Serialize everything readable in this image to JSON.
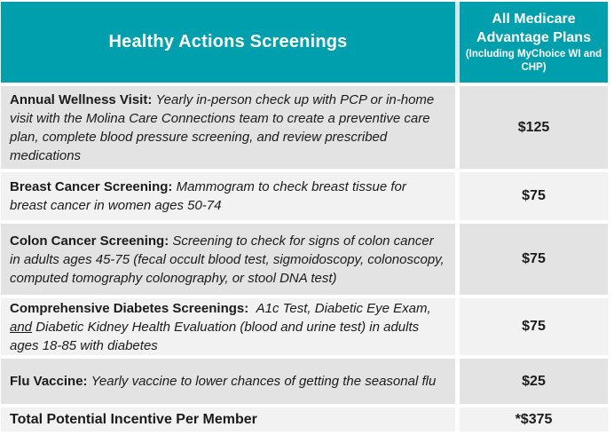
{
  "header": {
    "left_title": "Healthy Actions Screenings",
    "right_title": "All Medicare Advantage Plans",
    "right_subtitle": "(Including MyChoice WI and CHP)"
  },
  "rows": [
    {
      "label": "Annual Wellness Visit:",
      "description": "Yearly in-person check up with PCP or in-home visit with the Molina Care Connections team to create a preventive care plan, complete blood pressure screening, and review prescribed medications",
      "value": "$125"
    },
    {
      "label": "Breast Cancer Screening:",
      "description": "Mammogram to check breast tissue for breast cancer in women ages 50-74",
      "value": "$75"
    },
    {
      "label": "Colon Cancer Screening:",
      "description": "Screening to check for signs of colon cancer in adults ages 45-75 (fecal occult blood test, sigmoidoscopy, colonoscopy, computed tomography colonography, or stool DNA test)",
      "value": "$75"
    },
    {
      "label": "Comprehensive Diabetes Screenings:",
      "description_before_and": "A1c Test, Diabetic Eye Exam,",
      "description_underlined_word": "and",
      "description_after_and": "Diabetic Kidney Health Evaluation (blood and urine test) in adults ages 18-85 with diabetes",
      "value": "$75"
    },
    {
      "label": "Flu Vaccine:",
      "description": "Yearly vaccine to lower chances of getting the seasonal flu",
      "value": "$25"
    },
    {
      "label": "Total Potential Incentive Per Member",
      "value": "*$375"
    }
  ],
  "colors": {
    "teal": "#009FAE",
    "row_gray": "#E3E3E3",
    "row_light": "#F2F2F2",
    "text": "#1B1B1B",
    "header_text": "#FFFFFF"
  }
}
